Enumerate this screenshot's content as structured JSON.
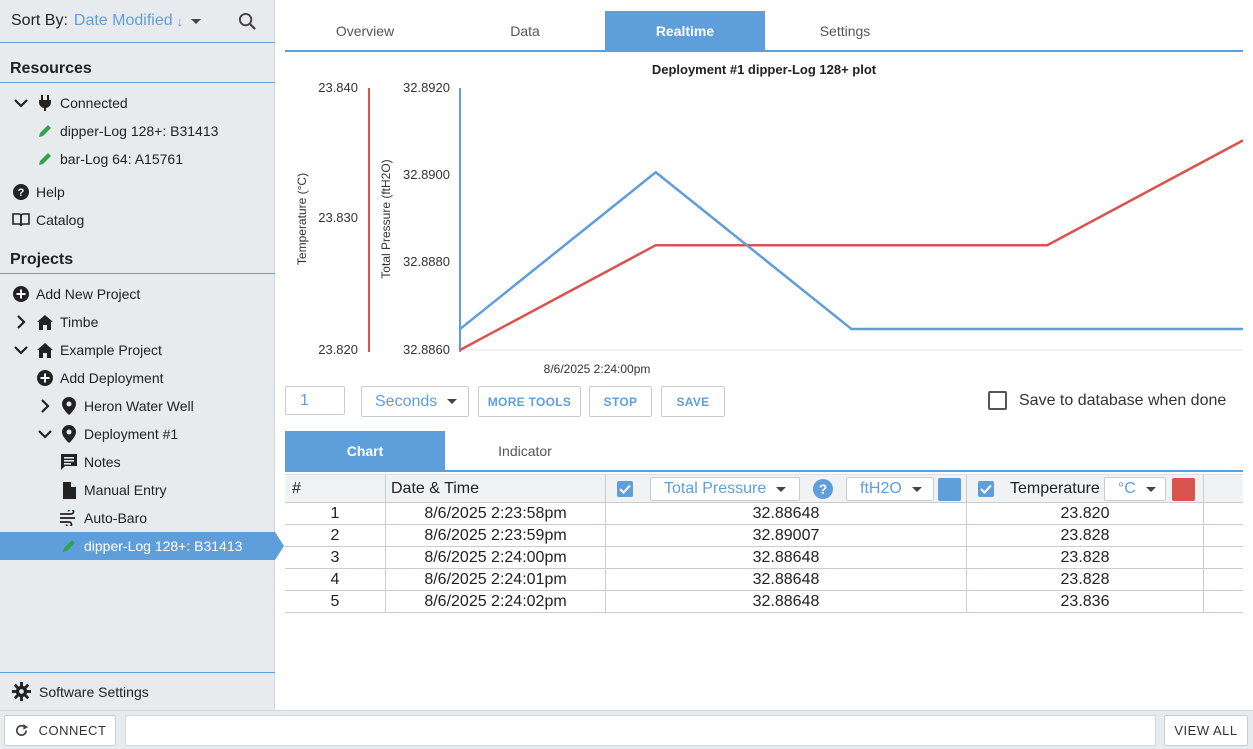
{
  "sidebar": {
    "sort_label": "Sort By:",
    "sort_value": "Date Modified",
    "sort_arrow": "↓",
    "resources_title": "Resources",
    "connected_label": "Connected",
    "devices": [
      "dipper-Log 128+: B31413",
      "bar-Log 64: A15761"
    ],
    "help_label": "Help",
    "catalog_label": "Catalog",
    "projects_title": "Projects",
    "add_project_label": "Add New Project",
    "timbe_label": "Timbe",
    "example_project_label": "Example Project",
    "add_deployment_label": "Add Deployment",
    "heron_label": "Heron Water Well",
    "deployment_label": "Deployment #1",
    "notes_label": "Notes",
    "manual_entry_label": "Manual Entry",
    "auto_baro_label": "Auto-Baro",
    "selected_device_label": "dipper-Log 128+: B31413",
    "software_settings_label": "Software Settings"
  },
  "statusbar": {
    "connect_label": "CONNECT",
    "view_all_label": "VIEW ALL"
  },
  "tabs": [
    "Overview",
    "Data",
    "Realtime",
    "Settings"
  ],
  "active_tab": "Realtime",
  "controls": {
    "interval_value": "1",
    "unit_value": "Seconds",
    "more_tools_label": "MORE TOOLS",
    "stop_label": "STOP",
    "save_label": "SAVE",
    "save_db_label": "Save to database when done"
  },
  "subtabs": [
    "Chart",
    "Indicator"
  ],
  "table": {
    "col_index": "#",
    "col_datetime": "Date & Time",
    "col_pressure": "Total Pressure",
    "pressure_unit": "ftH2O",
    "col_temperature": "Temperature",
    "temperature_unit": "°C",
    "rows": [
      {
        "n": "1",
        "dt": "8/6/2025 2:23:58pm",
        "p": "32.88648",
        "t": "23.820"
      },
      {
        "n": "2",
        "dt": "8/6/2025 2:23:59pm",
        "p": "32.89007",
        "t": "23.828"
      },
      {
        "n": "3",
        "dt": "8/6/2025 2:24:00pm",
        "p": "32.88648",
        "t": "23.828"
      },
      {
        "n": "4",
        "dt": "8/6/2025 2:24:01pm",
        "p": "32.88648",
        "t": "23.828"
      },
      {
        "n": "5",
        "dt": "8/6/2025 2:24:02pm",
        "p": "32.88648",
        "t": "23.836"
      }
    ]
  },
  "colors": {
    "accent": "#5e9fdb",
    "pressure": "#5e9fdb",
    "temperature": "#d9534f"
  },
  "chart_data": {
    "type": "line",
    "title": "Deployment #1 dipper-Log 128+ plot",
    "x_tick_label": "8/6/2025 2:24:00pm",
    "x": [
      "8/6/2025 2:23:58pm",
      "8/6/2025 2:23:59pm",
      "8/6/2025 2:24:00pm",
      "8/6/2025 2:24:01pm",
      "8/6/2025 2:24:02pm"
    ],
    "series": [
      {
        "name": "Total Pressure",
        "axis_label": "Total Pressure (ftH2O)",
        "values": [
          32.88648,
          32.89007,
          32.88648,
          32.88648,
          32.88648
        ],
        "ylim": [
          32.886,
          32.892
        ],
        "ticks": [
          "32.8920",
          "32.8900",
          "32.8880",
          "32.8860"
        ],
        "color": "#5e9fdb"
      },
      {
        "name": "Temperature",
        "axis_label": "Temperature (°C)",
        "values": [
          23.82,
          23.828,
          23.828,
          23.828,
          23.836
        ],
        "ylim": [
          23.82,
          23.84
        ],
        "ticks": [
          "23.840",
          "23.830",
          "23.820"
        ],
        "color": "#d9534f"
      }
    ]
  }
}
